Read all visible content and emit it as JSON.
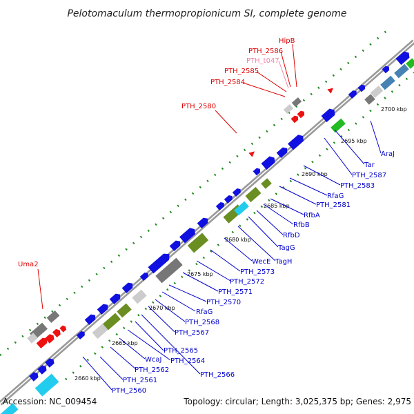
{
  "title": "Pelotomaculum thermopropionicum SI, complete genome",
  "footer": {
    "accession": "Accession: NC_009454",
    "summary": "Topology: circular; Length: 3,025,375 bp; Genes: 2,975"
  },
  "colors": {
    "backbone": "#8c8c8c",
    "gene_blue": "#1010e0",
    "gene_green": "#6b8e23",
    "gene_lime": "#22bb22",
    "gene_gray": "#777777",
    "gene_light": "#cccccc",
    "gene_red": "#ee1111",
    "gene_cyan": "#22ccee",
    "gene_steel": "#4682b4",
    "label_blue": "#0000cc",
    "label_red": "#dd0000",
    "label_pink": "#ee88aa",
    "tick": "#228b22"
  },
  "kbp_marks": [
    "2660 kbp",
    "2665 kbp",
    "2670 kbp",
    "2675 kbp",
    "2680 kbp",
    "2685 kbp",
    "2690 kbp",
    "2695 kbp",
    "2700 kbp"
  ],
  "gene_labels": [
    {
      "text": "PTH_2560",
      "color": "blue"
    },
    {
      "text": "PTH_2561",
      "color": "blue"
    },
    {
      "text": "PTH_2562",
      "color": "blue"
    },
    {
      "text": "WcaJ",
      "color": "blue"
    },
    {
      "text": "PTH_2564",
      "color": "blue"
    },
    {
      "text": "PTH_2565",
      "color": "blue"
    },
    {
      "text": "PTH_2566",
      "color": "blue"
    },
    {
      "text": "PTH_2567",
      "color": "blue"
    },
    {
      "text": "PTH_2568",
      "color": "blue"
    },
    {
      "text": "RfaG",
      "color": "blue"
    },
    {
      "text": "PTH_2570",
      "color": "blue"
    },
    {
      "text": "PTH_2571",
      "color": "blue"
    },
    {
      "text": "PTH_2572",
      "color": "blue"
    },
    {
      "text": "PTH_2573",
      "color": "blue"
    },
    {
      "text": "WecE",
      "color": "blue"
    },
    {
      "text": "TagH",
      "color": "blue"
    },
    {
      "text": "TagG",
      "color": "blue"
    },
    {
      "text": "RfbD",
      "color": "blue"
    },
    {
      "text": "RfbB",
      "color": "blue"
    },
    {
      "text": "RfbA",
      "color": "blue"
    },
    {
      "text": "PTH_2581",
      "color": "blue"
    },
    {
      "text": "RfaG",
      "color": "blue"
    },
    {
      "text": "PTH_2583",
      "color": "blue"
    },
    {
      "text": "PTH_2587",
      "color": "blue"
    },
    {
      "text": "Tar",
      "color": "blue"
    },
    {
      "text": "AraJ",
      "color": "blue"
    },
    {
      "text": "Uma2",
      "color": "red"
    },
    {
      "text": "PTH_2580",
      "color": "red"
    },
    {
      "text": "PTH_2584",
      "color": "red"
    },
    {
      "text": "PTH_2585",
      "color": "red"
    },
    {
      "text": "PTH_t047",
      "color": "pink"
    },
    {
      "text": "PTH_2586",
      "color": "red"
    },
    {
      "text": "HipB",
      "color": "red"
    }
  ]
}
